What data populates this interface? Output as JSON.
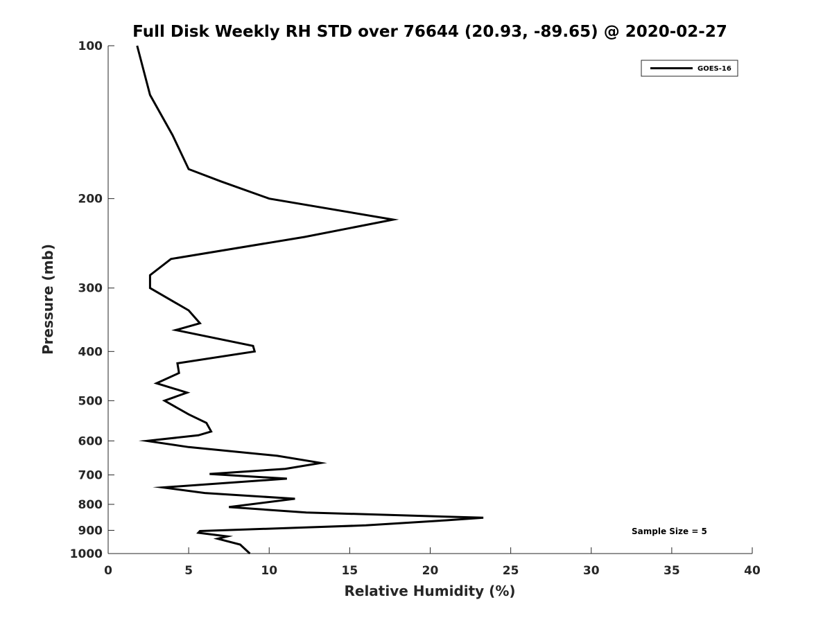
{
  "chart_data": {
    "type": "line",
    "title": "Full Disk Weekly RH STD over 76644 (20.93, -89.65) @ 2020-02-27",
    "xlabel": "Relative Humidity (%)",
    "ylabel": "Pressure (mb)",
    "xlim": [
      0,
      40
    ],
    "ylim": [
      100,
      1000
    ],
    "yscale": "log",
    "y_reversed": true,
    "x_ticks": [
      0,
      5,
      10,
      15,
      20,
      25,
      30,
      35,
      40
    ],
    "y_ticks": [
      100,
      200,
      300,
      400,
      500,
      600,
      700,
      800,
      900,
      1000
    ],
    "grid": false,
    "legend_position": "top-right",
    "annotation": "Sample Size = 5",
    "line_color": "#000000",
    "series": [
      {
        "name": "GOES-16",
        "points": [
          [
            1.8,
            100
          ],
          [
            2.6,
            125
          ],
          [
            4.0,
            150
          ],
          [
            5.0,
            175
          ],
          [
            7.0,
            185
          ],
          [
            10.0,
            200
          ],
          [
            17.7,
            220
          ],
          [
            12.2,
            238
          ],
          [
            3.9,
            263
          ],
          [
            2.6,
            283
          ],
          [
            2.6,
            300
          ],
          [
            5.0,
            332
          ],
          [
            5.7,
            352
          ],
          [
            4.2,
            363
          ],
          [
            9.0,
            390
          ],
          [
            9.1,
            400
          ],
          [
            4.3,
            422
          ],
          [
            4.4,
            441
          ],
          [
            3.0,
            462
          ],
          [
            4.9,
            482
          ],
          [
            3.5,
            500
          ],
          [
            5.0,
            532
          ],
          [
            6.1,
            553
          ],
          [
            6.4,
            575
          ],
          [
            5.6,
            585
          ],
          [
            2.4,
            600
          ],
          [
            5.0,
            617
          ],
          [
            10.5,
            642
          ],
          [
            13.2,
            663
          ],
          [
            11.0,
            681
          ],
          [
            6.3,
            697
          ],
          [
            11.1,
            712
          ],
          [
            3.4,
            741
          ],
          [
            6.0,
            760
          ],
          [
            11.6,
            780
          ],
          [
            7.5,
            810
          ],
          [
            12.3,
            830
          ],
          [
            23.3,
            850
          ],
          [
            21.0,
            860
          ],
          [
            16.0,
            880
          ],
          [
            5.7,
            903
          ],
          [
            5.6,
            910
          ],
          [
            7.4,
            925
          ],
          [
            6.8,
            935
          ],
          [
            8.2,
            960
          ],
          [
            8.8,
            1000
          ]
        ]
      }
    ]
  }
}
